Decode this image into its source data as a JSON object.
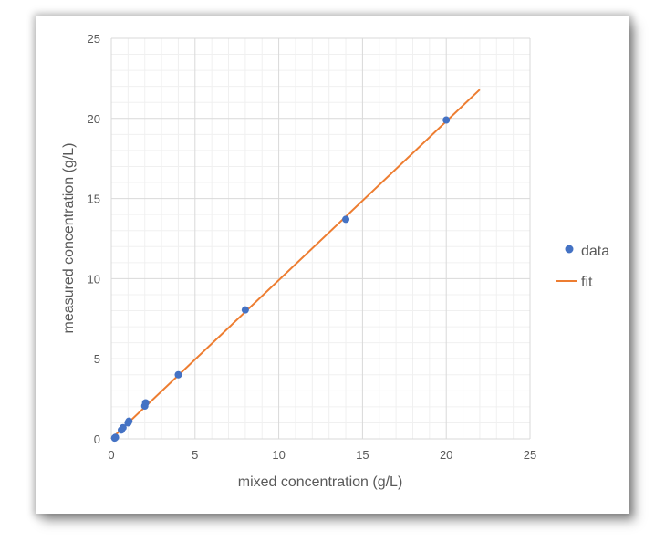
{
  "chart_data": {
    "type": "scatter",
    "xlabel": "mixed concentration (g/L)",
    "ylabel": "measured concentration (g/L)",
    "xlim": [
      0,
      25
    ],
    "ylim": [
      0,
      25
    ],
    "major_step": 5,
    "minor_step": 1,
    "grid": true,
    "legend_position": "right",
    "x_ticks": [
      "0",
      "5",
      "10",
      "15",
      "20",
      "25"
    ],
    "y_ticks": [
      "0",
      "5",
      "10",
      "15",
      "20",
      "25"
    ],
    "series": [
      {
        "name": "data",
        "kind": "scatter",
        "color": "#4472C4",
        "points": [
          {
            "x": 0.2,
            "y": 0.05
          },
          {
            "x": 0.25,
            "y": 0.1
          },
          {
            "x": 0.6,
            "y": 0.55
          },
          {
            "x": 0.7,
            "y": 0.7
          },
          {
            "x": 1.0,
            "y": 1.0
          },
          {
            "x": 1.05,
            "y": 1.1
          },
          {
            "x": 2.0,
            "y": 2.05
          },
          {
            "x": 2.05,
            "y": 2.25
          },
          {
            "x": 4.0,
            "y": 4.0
          },
          {
            "x": 8.0,
            "y": 8.05
          },
          {
            "x": 14.0,
            "y": 13.7
          },
          {
            "x": 20.0,
            "y": 19.9
          }
        ]
      },
      {
        "name": "fit",
        "kind": "line",
        "color": "#ED7D31",
        "points": [
          {
            "x": 0.0,
            "y": 0.0
          },
          {
            "x": 22.0,
            "y": 21.8
          }
        ]
      }
    ]
  }
}
